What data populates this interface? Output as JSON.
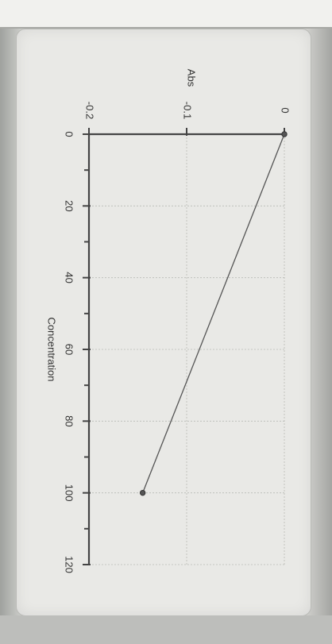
{
  "chart_data": {
    "type": "line",
    "orientation": "rotated 90° clockwise",
    "xlabel": "Concentration",
    "ylabel": "Abs",
    "xlim": [
      0,
      120
    ],
    "ylim": [
      -0.2,
      0
    ],
    "x_ticks": [
      "0",
      "20",
      "40",
      "60",
      "80",
      "100",
      "120"
    ],
    "y_ticks": [
      "-0.2",
      "-0.1",
      "0"
    ],
    "grid": true,
    "series": [
      {
        "x": [
          0,
          100
        ],
        "y": [
          0,
          -0.145
        ],
        "marker": "circle"
      }
    ]
  }
}
